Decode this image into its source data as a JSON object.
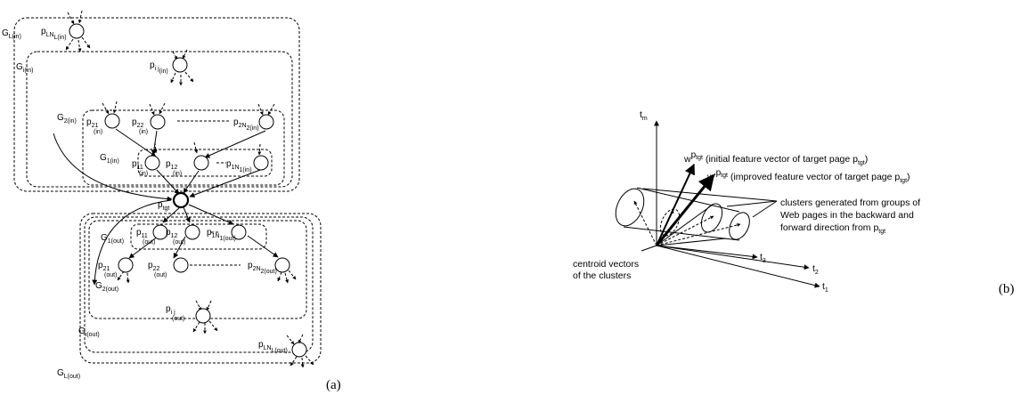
{
  "left_diagram": {
    "caption": "(a)",
    "groups": {
      "g_L_in": "G",
      "g_L_in_sub": "L(in)",
      "g_i_in": "G",
      "g_i_in_sub": "i(in)",
      "g_2_in": "G",
      "g_2_in_sub": "2(in)",
      "g_1_in": "G",
      "g_1_in_sub": "1(in)",
      "g_1_out": "G",
      "g_1_out_sub": "1(out)",
      "g_2_out": "G",
      "g_2_out_sub": "2(out)",
      "g_i_out": "G",
      "g_i_out_sub": "i(out)",
      "g_L_out": "G",
      "g_L_out_sub": "L(out)"
    },
    "nodes": {
      "p_LN_in": {
        "main": "p",
        "sub": "LN",
        "subsub": "L(in)"
      },
      "p_ij_in": {
        "main": "p",
        "sub": "i j",
        "subsub": "(in)"
      },
      "p_21_in": {
        "main": "p",
        "sub": "21",
        "subsub": "(in)"
      },
      "p_22_in": {
        "main": "p",
        "sub": "22",
        "subsub": "(in)"
      },
      "p_2N_in": {
        "main": "p",
        "sub": "2N",
        "subsub": "2(in)"
      },
      "p_11_in": {
        "main": "p",
        "sub": "11",
        "subsub": "(in)"
      },
      "p_12_in": {
        "main": "p",
        "sub": "12",
        "subsub": "(in)"
      },
      "p_1N_in": {
        "main": "p",
        "sub": "1N",
        "subsub": "1(in)"
      },
      "p_tgt": {
        "main": "p",
        "sub": "tgt"
      },
      "p_11_out": {
        "main": "p",
        "sub": "11",
        "subsub": "(out)"
      },
      "p_12_out": {
        "main": "p",
        "sub": "12",
        "subsub": "(out)"
      },
      "p_1N_out": {
        "main": "p",
        "sub": "1N",
        "subsub": "1(out)"
      },
      "p_21_out": {
        "main": "p",
        "sub": "21",
        "subsub": "(out)"
      },
      "p_22_out": {
        "main": "p",
        "sub": "22",
        "subsub": "(out)"
      },
      "p_2N_out": {
        "main": "p",
        "sub": "2N",
        "subsub": "2(out)"
      },
      "p_ij_out": {
        "main": "p",
        "sub": "i j",
        "subsub": "(out)"
      },
      "p_LN_out": {
        "main": "p",
        "sub": "LN",
        "subsub": "L(out)"
      }
    }
  },
  "right_diagram": {
    "caption": "(b)",
    "axis_tm": "t",
    "axis_tm_sub": "m",
    "axis_t3": "t",
    "axis_t3_sub": "3",
    "axis_t2": "t",
    "axis_t2_sub": "2",
    "axis_t1": "t",
    "axis_t1_sub": "1",
    "w_label": "w",
    "w_sup": "p",
    "w_sup_sub": "tgt",
    "w_desc": "(initial feature vector of target page  p",
    "w_desc_sub": "tgt",
    "w_desc_end": ")",
    "wprime_label": "w'",
    "wprime_sup": "p",
    "wprime_sup_sub": "tgt",
    "wprime_desc": "(improved feature vector of target page  p",
    "wprime_desc_sub": "tgt",
    "wprime_desc_end": ")",
    "clusters_line1": "clusters generated from groups of",
    "clusters_line2": "Web pages in the backward and",
    "clusters_line3": "forward direction from  p",
    "clusters_line3_sub": "tgt",
    "centroid_line1": "centroid vectors",
    "centroid_line2": "of the clusters"
  }
}
